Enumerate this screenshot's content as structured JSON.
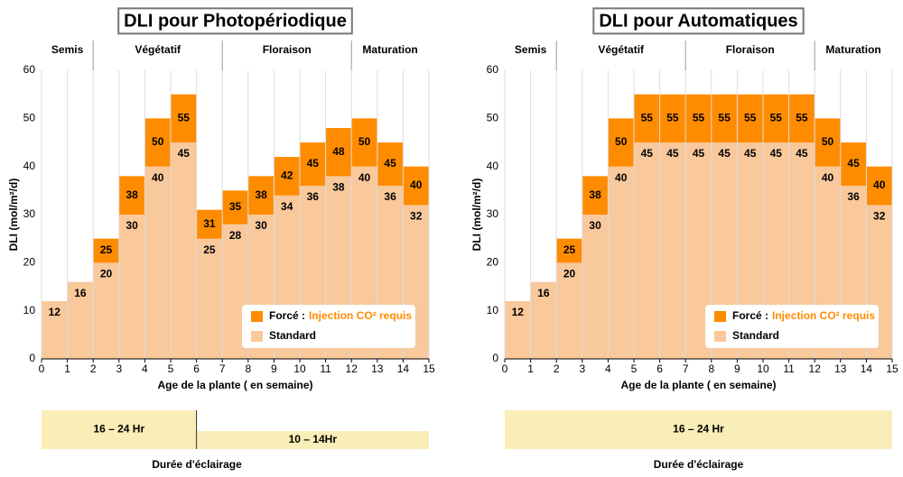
{
  "chart_data": [
    {
      "type": "bar",
      "title": "DLI pour Photopériodique",
      "x_label": "Age de la plante ( en semaine)",
      "y_label": "DLI (mol/m²/d)",
      "x": [
        0,
        1,
        2,
        3,
        4,
        5,
        6,
        7,
        8,
        9,
        10,
        11,
        12,
        13,
        14
      ],
      "series": [
        {
          "name": "Forcé :",
          "note": "Injection CO² requis",
          "color": "#ff8c00",
          "values": [
            null,
            null,
            25,
            38,
            50,
            55,
            31,
            35,
            38,
            42,
            45,
            48,
            50,
            45,
            40
          ]
        },
        {
          "name": "Standard",
          "color": "#f9c89b",
          "values": [
            12,
            16,
            20,
            30,
            40,
            45,
            25,
            28,
            30,
            34,
            36,
            38,
            40,
            36,
            32
          ]
        }
      ],
      "xlim": [
        0,
        15
      ],
      "xticks": [
        0,
        1,
        2,
        3,
        4,
        5,
        6,
        7,
        8,
        9,
        10,
        11,
        12,
        13,
        14,
        15
      ],
      "ylim": [
        0,
        60
      ],
      "yticks": [
        0,
        10,
        20,
        30,
        40,
        50,
        60
      ],
      "grid": true,
      "phases": [
        {
          "label": "Semis",
          "from": 0,
          "to": 2
        },
        {
          "label": "Végétatif",
          "from": 2,
          "to": 7
        },
        {
          "label": "Floraison",
          "from": 7,
          "to": 12
        },
        {
          "label": "Maturation",
          "from": 12,
          "to": 15
        }
      ],
      "lighting_title": "Durée d'éclairage",
      "lighting": [
        {
          "label": "16 – 24 Hr",
          "from": 0,
          "to": 6
        },
        {
          "label": "10 – 14Hr",
          "from": 6,
          "to": 15
        }
      ]
    },
    {
      "type": "bar",
      "title": "DLI pour Automatiques",
      "x_label": "Age de la plante ( en semaine)",
      "y_label": "DLI (mol/m²/d)",
      "x": [
        0,
        1,
        2,
        3,
        4,
        5,
        6,
        7,
        8,
        9,
        10,
        11,
        12,
        13,
        14
      ],
      "series": [
        {
          "name": "Forcé :",
          "note": "Injection CO² requis",
          "color": "#ff8c00",
          "values": [
            null,
            null,
            25,
            38,
            50,
            55,
            55,
            55,
            55,
            55,
            55,
            55,
            50,
            45,
            40
          ]
        },
        {
          "name": "Standard",
          "color": "#f9c89b",
          "values": [
            12,
            16,
            20,
            30,
            40,
            45,
            45,
            45,
            45,
            45,
            45,
            45,
            40,
            36,
            32
          ]
        }
      ],
      "xlim": [
        0,
        15
      ],
      "xticks": [
        0,
        1,
        2,
        3,
        4,
        5,
        6,
        7,
        8,
        9,
        10,
        11,
        12,
        13,
        14,
        15
      ],
      "ylim": [
        0,
        60
      ],
      "yticks": [
        0,
        10,
        20,
        30,
        40,
        50,
        60
      ],
      "grid": true,
      "phases": [
        {
          "label": "Semis",
          "from": 0,
          "to": 2
        },
        {
          "label": "Végétatif",
          "from": 2,
          "to": 7
        },
        {
          "label": "Floraison",
          "from": 7,
          "to": 12
        },
        {
          "label": "Maturation",
          "from": 12,
          "to": 15
        }
      ],
      "lighting_title": "Durée d'éclairage",
      "lighting": [
        {
          "label": "16 – 24 Hr",
          "from": 0,
          "to": 15
        }
      ]
    }
  ]
}
